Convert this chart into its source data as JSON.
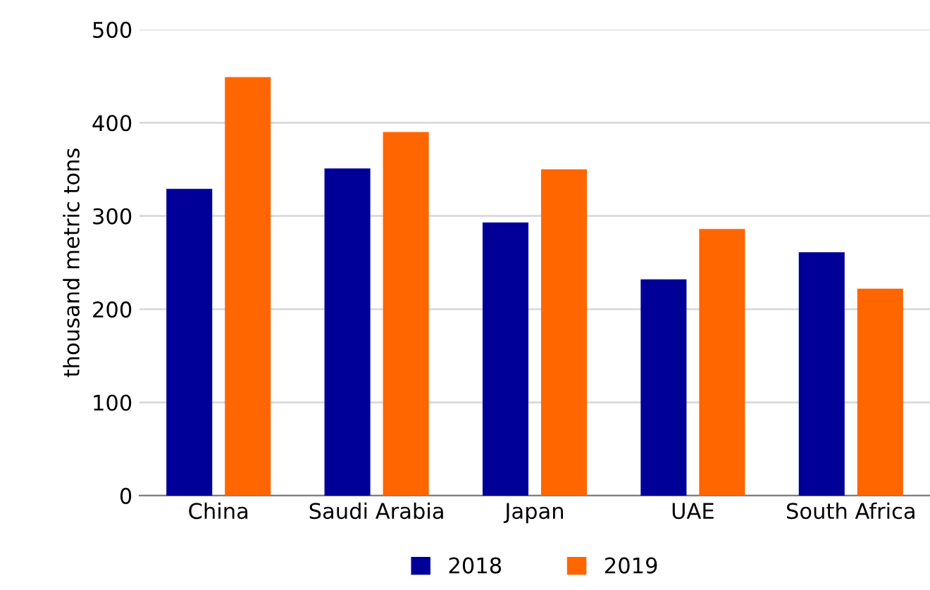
{
  "chart_data": {
    "type": "bar",
    "ylabel": "thousand metric tons",
    "categories": [
      "China",
      "Saudi Arabia",
      "Japan",
      "UAE",
      "South Africa"
    ],
    "series": [
      {
        "name": "2018",
        "color": "#000099",
        "values": [
          329,
          351,
          293,
          232,
          261
        ]
      },
      {
        "name": "2019",
        "color": "#ff6600",
        "values": [
          449,
          390,
          350,
          286,
          222
        ]
      }
    ],
    "ylim": [
      0,
      500
    ],
    "yticks": [
      0,
      100,
      200,
      300,
      400,
      500
    ],
    "grid": "y",
    "legend": "bottom"
  }
}
